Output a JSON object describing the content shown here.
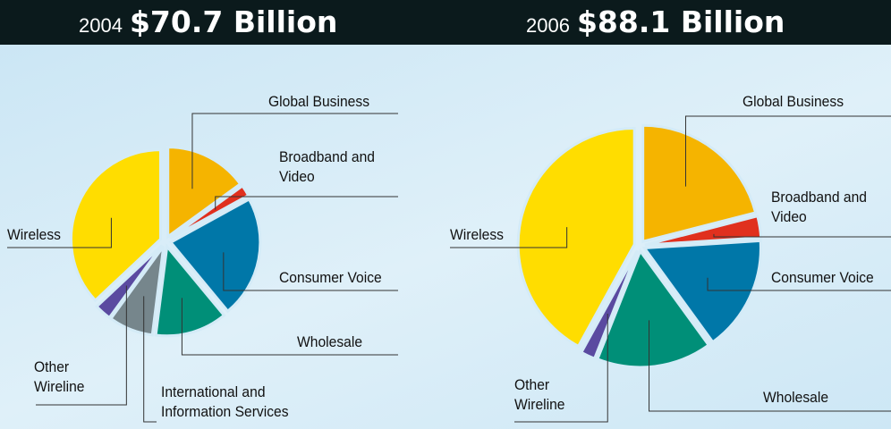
{
  "chart_data": [
    {
      "type": "pie",
      "subtitle": "2004",
      "title": "$70.7 Billion",
      "categories": [
        "Global Business",
        "Broadband and Video",
        "Consumer Voice",
        "Wholesale",
        "International and Information Services",
        "Other Wireline",
        "Wireless"
      ],
      "values": [
        15,
        2,
        22,
        13,
        8,
        3,
        37
      ],
      "colors": [
        "#f5b400",
        "#e0301e",
        "#0077a8",
        "#008f78",
        "#76868c",
        "#5a4aa0",
        "#ffdd00"
      ]
    },
    {
      "type": "pie",
      "subtitle": "2006",
      "title": "$88.1 Billion",
      "categories": [
        "Global Business",
        "Broadband and Video",
        "Consumer Voice",
        "Wholesale",
        "Other Wireline",
        "Wireless"
      ],
      "values": [
        21,
        3,
        16,
        16,
        2,
        42
      ],
      "colors": [
        "#f5b400",
        "#e0301e",
        "#0077a8",
        "#008f78",
        "#5a4aa0",
        "#ffdd00"
      ]
    }
  ]
}
